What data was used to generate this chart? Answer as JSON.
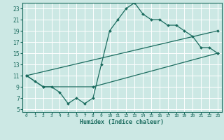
{
  "xlabel": "Humidex (Indice chaleur)",
  "xlim": [
    -0.5,
    23.5
  ],
  "ylim": [
    4.5,
    24.0
  ],
  "yticks": [
    5,
    7,
    9,
    11,
    13,
    15,
    17,
    19,
    21,
    23
  ],
  "xticks": [
    0,
    1,
    2,
    3,
    4,
    5,
    6,
    7,
    8,
    9,
    10,
    11,
    12,
    13,
    14,
    15,
    16,
    17,
    18,
    19,
    20,
    21,
    22,
    23
  ],
  "bg_color": "#cce8e4",
  "grid_color": "#ffffff",
  "line_color": "#1a6b5e",
  "lines": [
    {
      "x": [
        0,
        1,
        2,
        3,
        4,
        5,
        6,
        7,
        8,
        9,
        10,
        11,
        12,
        13,
        14,
        15,
        16,
        17,
        18,
        19,
        20,
        21,
        22,
        23
      ],
      "y": [
        11,
        10,
        9,
        9,
        8,
        6,
        7,
        6,
        7,
        13,
        19,
        21,
        23,
        24,
        22,
        21,
        21,
        20,
        20,
        19,
        18,
        16,
        16,
        15
      ]
    },
    {
      "x": [
        0,
        2,
        8,
        23
      ],
      "y": [
        11,
        9,
        9,
        15
      ]
    },
    {
      "x": [
        0,
        23
      ],
      "y": [
        11,
        19
      ]
    }
  ]
}
